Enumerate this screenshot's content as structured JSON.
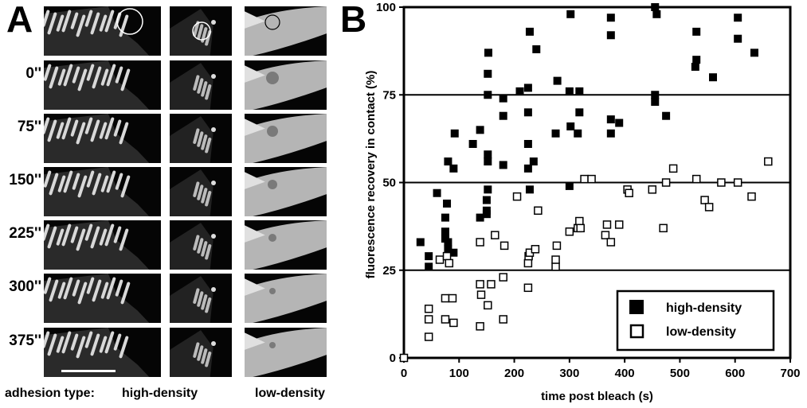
{
  "panel_a": {
    "letter": "A",
    "time_labels": [
      "0''",
      "75''",
      "150''",
      "225''",
      "300''",
      "375''"
    ],
    "row_label": "adhesion type:",
    "column_labels": [
      "high-density",
      "low-density"
    ]
  },
  "panel_b": {
    "letter": "B"
  },
  "chart_data": {
    "type": "scatter",
    "xlabel": "time post bleach (s)",
    "ylabel": "fluorescence recovery in contact (%)",
    "xlim": [
      0,
      700
    ],
    "ylim": [
      0,
      100
    ],
    "xticks": [
      "0",
      "100",
      "200",
      "300",
      "400",
      "500",
      "600",
      "700"
    ],
    "yticks": [
      "0",
      "25",
      "50",
      "75",
      "100"
    ],
    "horizontal_lines": [
      25,
      50,
      75
    ],
    "legend_position": "bottom-right",
    "series": [
      {
        "name": "high-density",
        "marker": "filled-square",
        "points": [
          [
            30,
            33
          ],
          [
            45,
            26
          ],
          [
            45,
            29
          ],
          [
            60,
            47
          ],
          [
            75,
            40
          ],
          [
            75,
            36
          ],
          [
            75,
            34
          ],
          [
            80,
            33
          ],
          [
            80,
            31
          ],
          [
            78,
            44
          ],
          [
            80,
            56
          ],
          [
            90,
            54
          ],
          [
            90,
            30
          ],
          [
            92,
            64
          ],
          [
            125,
            61
          ],
          [
            138,
            65
          ],
          [
            138,
            40
          ],
          [
            150,
            41
          ],
          [
            150,
            45
          ],
          [
            150,
            42
          ],
          [
            152,
            48
          ],
          [
            152,
            56
          ],
          [
            152,
            58
          ],
          [
            152,
            75
          ],
          [
            152,
            81
          ],
          [
            153,
            87
          ],
          [
            180,
            55
          ],
          [
            180,
            69
          ],
          [
            180,
            74
          ],
          [
            210,
            76
          ],
          [
            225,
            54
          ],
          [
            225,
            61
          ],
          [
            225,
            70
          ],
          [
            225,
            77
          ],
          [
            228,
            48
          ],
          [
            228,
            93
          ],
          [
            235,
            56
          ],
          [
            240,
            88
          ],
          [
            275,
            64
          ],
          [
            278,
            79
          ],
          [
            300,
            76
          ],
          [
            300,
            49
          ],
          [
            302,
            98
          ],
          [
            302,
            66
          ],
          [
            315,
            64
          ],
          [
            318,
            70
          ],
          [
            318,
            76
          ],
          [
            375,
            64
          ],
          [
            375,
            68
          ],
          [
            375,
            92
          ],
          [
            375,
            97
          ],
          [
            390,
            67
          ],
          [
            455,
            75
          ],
          [
            455,
            73
          ],
          [
            455,
            100
          ],
          [
            458,
            98
          ],
          [
            475,
            69
          ],
          [
            528,
            83
          ],
          [
            530,
            85
          ],
          [
            530,
            93
          ],
          [
            560,
            80
          ],
          [
            605,
            97
          ],
          [
            605,
            91
          ],
          [
            635,
            87
          ]
        ]
      },
      {
        "name": "low-density",
        "marker": "open-square",
        "points": [
          [
            0,
            0
          ],
          [
            45,
            14
          ],
          [
            45,
            11
          ],
          [
            45,
            6
          ],
          [
            65,
            28
          ],
          [
            75,
            11
          ],
          [
            75,
            17
          ],
          [
            78,
            29
          ],
          [
            82,
            27
          ],
          [
            88,
            17
          ],
          [
            90,
            10
          ],
          [
            138,
            9
          ],
          [
            138,
            21
          ],
          [
            138,
            33
          ],
          [
            140,
            18
          ],
          [
            152,
            15
          ],
          [
            158,
            21
          ],
          [
            165,
            35
          ],
          [
            180,
            11
          ],
          [
            180,
            23
          ],
          [
            182,
            32
          ],
          [
            205,
            46
          ],
          [
            225,
            20
          ],
          [
            225,
            27
          ],
          [
            226,
            29
          ],
          [
            228,
            30
          ],
          [
            238,
            31
          ],
          [
            243,
            42
          ],
          [
            275,
            26
          ],
          [
            275,
            28
          ],
          [
            277,
            32
          ],
          [
            300,
            36
          ],
          [
            315,
            37
          ],
          [
            318,
            39
          ],
          [
            320,
            37
          ],
          [
            327,
            51
          ],
          [
            340,
            51
          ],
          [
            365,
            35
          ],
          [
            368,
            38
          ],
          [
            375,
            33
          ],
          [
            390,
            38
          ],
          [
            405,
            48
          ],
          [
            408,
            47
          ],
          [
            450,
            48
          ],
          [
            470,
            37
          ],
          [
            475,
            50
          ],
          [
            488,
            54
          ],
          [
            530,
            51
          ],
          [
            545,
            45
          ],
          [
            553,
            43
          ],
          [
            575,
            50
          ],
          [
            605,
            50
          ],
          [
            630,
            46
          ],
          [
            660,
            56
          ]
        ]
      }
    ]
  }
}
